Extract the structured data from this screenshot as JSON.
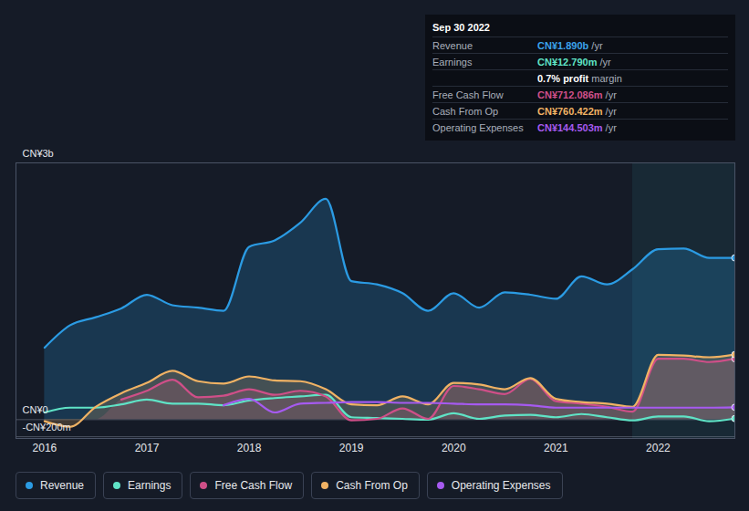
{
  "chart_data": {
    "type": "line",
    "x": [
      2016,
      2016.25,
      2016.5,
      2016.75,
      2017,
      2017.25,
      2017.5,
      2017.75,
      2018,
      2018.25,
      2018.5,
      2018.75,
      2019,
      2019.25,
      2019.5,
      2019.75,
      2020,
      2020.25,
      2020.5,
      2020.75,
      2021,
      2021.25,
      2021.5,
      2021.75,
      2022,
      2022.25,
      2022.5,
      2022.75
    ],
    "xlim": [
      2015.72,
      2022.75
    ],
    "xticks": [
      2016,
      2017,
      2018,
      2019,
      2020,
      2021,
      2022
    ],
    "ylim": [
      -220,
      3000
    ],
    "yticks": [
      {
        "value": 3000,
        "label": "CN¥3b"
      },
      {
        "value": 0,
        "label": "CN¥0"
      },
      {
        "value": -200,
        "label": "-CN¥200m"
      }
    ],
    "grid": true,
    "legend": "bottom",
    "shaded_range": [
      2021.75,
      2022.75
    ],
    "series": [
      {
        "name": "Revenue",
        "color": "#2b9be3",
        "type": "area",
        "values": [
          841,
          1103,
          1197,
          1300,
          1459,
          1337,
          1309,
          1272,
          2020,
          2095,
          2300,
          2580,
          1618,
          1580,
          1477,
          1272,
          1477,
          1309,
          1487,
          1459,
          1412,
          1674,
          1580,
          1758,
          1992,
          2000,
          1889,
          1890
        ]
      },
      {
        "name": "Earnings",
        "color": "#5fe3c6",
        "type": "line",
        "values": [
          84,
          140,
          140,
          178,
          234,
          187,
          187,
          168,
          224,
          252,
          271,
          290,
          28,
          19,
          9,
          0,
          75,
          9,
          47,
          56,
          28,
          65,
          28,
          -9,
          37,
          37,
          -19,
          12.79
        ]
      },
      {
        "name": "Free Cash Flow",
        "color": "#cf4f88",
        "type": "area",
        "values": [
          null,
          null,
          null,
          234,
          337,
          467,
          262,
          280,
          355,
          290,
          337,
          271,
          -9,
          9,
          131,
          9,
          393,
          355,
          299,
          477,
          215,
          187,
          150,
          93,
          711,
          711,
          673,
          712.086
        ]
      },
      {
        "name": "Cash From Op",
        "color": "#f0b264",
        "type": "area",
        "values": [
          -19,
          -84,
          150,
          309,
          430,
          570,
          449,
          421,
          505,
          458,
          449,
          355,
          178,
          168,
          271,
          178,
          430,
          411,
          355,
          486,
          243,
          206,
          187,
          150,
          757,
          748,
          729,
          760.422
        ]
      },
      {
        "name": "Operating Expenses",
        "color": "#a65af0",
        "type": "line",
        "values": [
          null,
          null,
          null,
          null,
          null,
          null,
          null,
          168,
          243,
          84,
          187,
          196,
          206,
          206,
          196,
          196,
          187,
          178,
          178,
          168,
          140,
          140,
          140,
          140,
          140,
          140,
          140,
          144.503
        ]
      }
    ],
    "annotations": {
      "title": "Sep 30 2022",
      "rows": [
        {
          "label": "Revenue",
          "text": "CN¥1.890b /yr",
          "color": "#3ba3ec"
        },
        {
          "label": "Earnings",
          "text": "CN¥12.790m /yr",
          "color": "#5fe3c6"
        },
        {
          "text": "0.7% profit margin",
          "color": "#ffffff"
        },
        {
          "label": "Free Cash Flow",
          "text": "CN¥712.086m /yr",
          "color": "#d0508a"
        },
        {
          "label": "Cash From Op",
          "text": "CN¥760.422m /yr",
          "color": "#f0b264"
        },
        {
          "label": "Operating Expenses",
          "text": "CN¥144.503m /yr",
          "color": "#a65af0"
        }
      ]
    }
  }
}
